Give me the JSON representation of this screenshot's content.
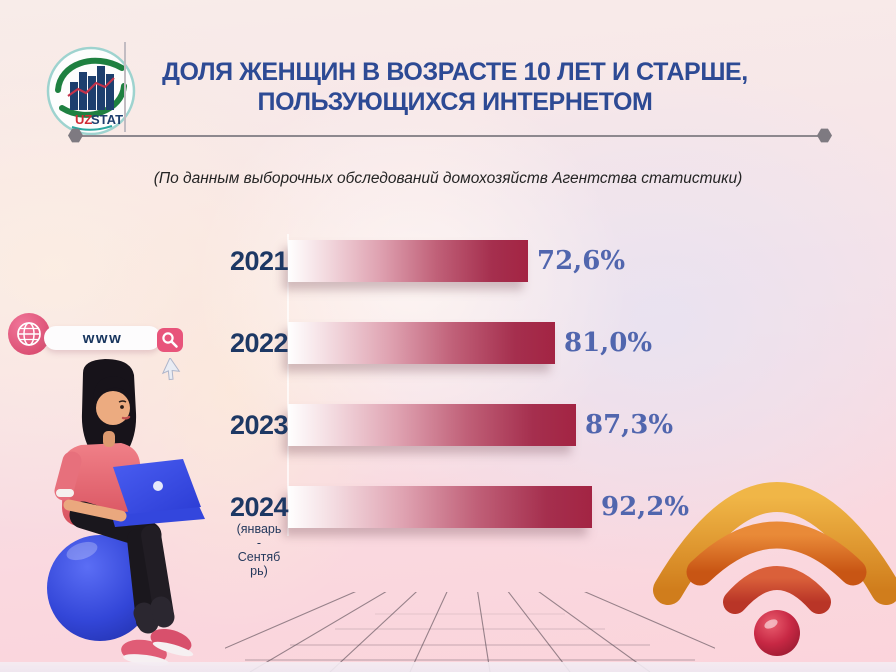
{
  "logo": {
    "uz": "UZ",
    "stat": "STAT"
  },
  "header": {
    "title_line1": "ДОЛЯ ЖЕНЩИН В ВОЗРАСТЕ 10 ЛЕТ И СТАРШЕ,",
    "title_line2": "ПОЛЬЗУЮЩИХСЯ ИНТЕРНЕТОМ",
    "title_color": "#2d4a94"
  },
  "subtitle": "(По данным выборочных обследований домохозяйств Агентства статистики)",
  "illustrations": {
    "search_text": "www",
    "globe_icon": "globe-icon",
    "magnifier_icon": "magnifier-icon",
    "cursor_icon": "cursor-arrow-icon",
    "wifi_icon": "wifi-icon",
    "woman_illustration": "woman-with-laptop-on-ball"
  },
  "chart_data": {
    "type": "bar",
    "orientation": "horizontal",
    "title": "Доля женщин в возрасте 10 лет и старше, пользующихся интернетом",
    "subtitle": "(По данным выборочных обследований домохозяйств Агентства статистики)",
    "categories": [
      "2021",
      "2022",
      "2023",
      "2024"
    ],
    "category_notes": [
      [],
      [],
      [],
      [
        "(январь",
        "-",
        "Сентяб",
        "рь)"
      ]
    ],
    "values": [
      72.6,
      81.0,
      87.3,
      92.2
    ],
    "value_labels": [
      "72,6%",
      "81,0%",
      "87,3%",
      "92,2%"
    ],
    "unit": "%",
    "xlim": [
      0,
      100
    ],
    "grid": false,
    "bar_gradient": [
      "#ffffff",
      "#dfa2b1",
      "#c06078",
      "#a32443"
    ],
    "year_label_color": "#1d3864",
    "value_label_color": "#5166ae"
  }
}
